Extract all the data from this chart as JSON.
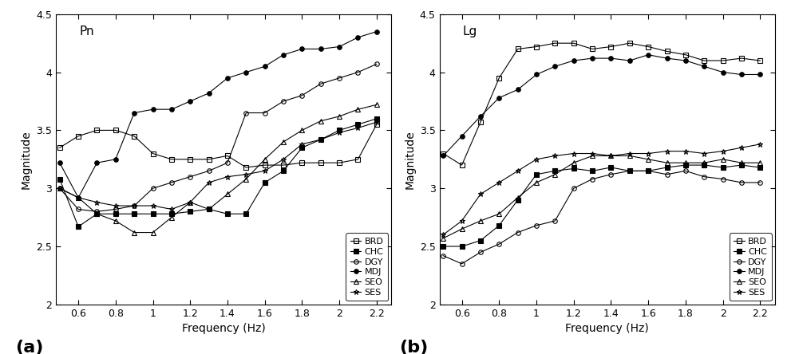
{
  "freq": [
    0.5,
    0.6,
    0.7,
    0.8,
    0.9,
    1.0,
    1.1,
    1.2,
    1.3,
    1.4,
    1.5,
    1.6,
    1.7,
    1.8,
    1.9,
    2.0,
    2.1,
    2.2
  ],
  "pn": {
    "BRD": [
      3.35,
      3.45,
      3.5,
      3.5,
      3.45,
      3.3,
      3.25,
      3.25,
      3.25,
      3.28,
      3.18,
      3.2,
      3.2,
      3.22,
      3.22,
      3.22,
      3.25,
      3.55
    ],
    "CHC": [
      3.08,
      2.67,
      2.78,
      2.78,
      2.78,
      2.78,
      2.78,
      2.8,
      2.82,
      2.78,
      2.78,
      3.05,
      3.15,
      3.35,
      3.42,
      3.5,
      3.55,
      3.6
    ],
    "DGY": [
      3.0,
      2.82,
      2.8,
      2.82,
      2.85,
      3.0,
      3.05,
      3.1,
      3.15,
      3.22,
      3.65,
      3.65,
      3.75,
      3.8,
      3.9,
      3.95,
      4.0,
      4.07
    ],
    "MDJ": [
      3.22,
      2.92,
      3.22,
      3.25,
      3.65,
      3.68,
      3.68,
      3.75,
      3.82,
      3.95,
      4.0,
      4.05,
      4.15,
      4.2,
      4.2,
      4.22,
      4.3,
      4.35
    ],
    "SEO": [
      3.0,
      2.92,
      2.78,
      2.72,
      2.62,
      2.62,
      2.75,
      2.88,
      2.82,
      2.95,
      3.08,
      3.25,
      3.4,
      3.5,
      3.58,
      3.62,
      3.68,
      3.72
    ],
    "SES": [
      3.0,
      2.92,
      2.88,
      2.85,
      2.85,
      2.85,
      2.82,
      2.88,
      3.05,
      3.1,
      3.12,
      3.15,
      3.25,
      3.38,
      3.42,
      3.48,
      3.52,
      3.57
    ]
  },
  "lg": {
    "BRD": [
      3.3,
      3.2,
      3.57,
      3.95,
      4.2,
      4.22,
      4.25,
      4.25,
      4.2,
      4.22,
      4.25,
      4.22,
      4.18,
      4.15,
      4.1,
      4.1,
      4.12,
      4.1
    ],
    "CHC": [
      2.5,
      2.5,
      2.55,
      2.68,
      2.9,
      3.12,
      3.15,
      3.17,
      3.15,
      3.18,
      3.15,
      3.15,
      3.18,
      3.2,
      3.2,
      3.18,
      3.2,
      3.18
    ],
    "DGY": [
      2.42,
      2.35,
      2.45,
      2.52,
      2.62,
      2.68,
      2.72,
      3.0,
      3.08,
      3.12,
      3.15,
      3.15,
      3.12,
      3.15,
      3.1,
      3.08,
      3.05,
      3.05
    ],
    "MDJ": [
      3.28,
      3.45,
      3.62,
      3.78,
      3.85,
      3.98,
      4.05,
      4.1,
      4.12,
      4.12,
      4.1,
      4.15,
      4.12,
      4.1,
      4.05,
      4.0,
      3.98,
      3.98
    ],
    "SEO": [
      2.57,
      2.65,
      2.72,
      2.78,
      2.92,
      3.05,
      3.12,
      3.22,
      3.28,
      3.28,
      3.28,
      3.25,
      3.22,
      3.22,
      3.22,
      3.25,
      3.22,
      3.22
    ],
    "SES": [
      2.6,
      2.72,
      2.95,
      3.05,
      3.15,
      3.25,
      3.28,
      3.3,
      3.3,
      3.28,
      3.3,
      3.3,
      3.32,
      3.32,
      3.3,
      3.32,
      3.35,
      3.38
    ]
  },
  "ylim": [
    2.0,
    4.5
  ],
  "xlim": [
    0.48,
    2.28
  ],
  "xlabel": "Frequency (Hz)",
  "ylabel": "Magnitude",
  "label_a": "Pn",
  "label_b": "Lg",
  "panel_a": "(a)",
  "panel_b": "(b)",
  "xtick_vals": [
    0.6,
    0.8,
    1.0,
    1.2,
    1.4,
    1.6,
    1.8,
    2.0,
    2.2
  ],
  "xtick_labels": [
    "0.6",
    "0.8",
    "1",
    "1.2",
    "1.4",
    "1.6",
    "1.8",
    "2",
    "2.2"
  ],
  "ytick_vals": [
    2.0,
    2.5,
    3.0,
    3.5,
    4.0,
    4.5
  ],
  "ytick_labels": [
    "2",
    "2.5",
    "3",
    "3.5",
    "4",
    "4.5"
  ],
  "legend_order": [
    "BRD",
    "CHC",
    "DGY",
    "MDJ",
    "SEO",
    "SES"
  ],
  "marker_styles": {
    "BRD": {
      "marker": "s",
      "fillstyle": "none",
      "ms": 4
    },
    "CHC": {
      "marker": "s",
      "fillstyle": "full",
      "ms": 4
    },
    "DGY": {
      "marker": "o",
      "fillstyle": "none",
      "ms": 4
    },
    "MDJ": {
      "marker": "o",
      "fillstyle": "full",
      "ms": 4
    },
    "SEO": {
      "marker": "^",
      "fillstyle": "none",
      "ms": 4
    },
    "SES": {
      "marker": "*",
      "fillstyle": "none",
      "ms": 5
    }
  }
}
